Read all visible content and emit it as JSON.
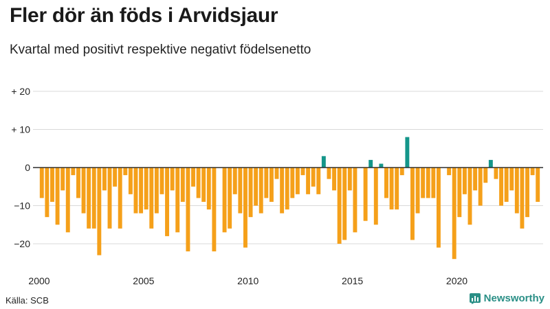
{
  "title": "Fler dör än föds i Arvidsjaur",
  "subtitle": "Kvartal med positivt respektive negativt födelsenetto",
  "source": "Källa: SCB",
  "brand": "Newsworthy",
  "colors": {
    "positive": "#14968a",
    "negative": "#f5a01a",
    "grid": "#d9d9d9",
    "zero": "#222222"
  },
  "chart_data": {
    "type": "bar",
    "title": "Fler dör än föds i Arvidsjaur",
    "subtitle": "Kvartal med positivt respektive negativt födelsenetto",
    "xlabel": "",
    "ylabel": "",
    "ylim": [
      -26,
      20
    ],
    "yticks": [
      {
        "value": 20,
        "label": "+ 20"
      },
      {
        "value": 10,
        "label": "+ 10"
      },
      {
        "value": 0,
        "label": "0"
      },
      {
        "value": -10,
        "label": "−10"
      },
      {
        "value": -20,
        "label": "−20"
      }
    ],
    "xticks": [
      {
        "index": 0,
        "label": "2000"
      },
      {
        "index": 20,
        "label": "2005"
      },
      {
        "index": 40,
        "label": "2010"
      },
      {
        "index": 60,
        "label": "2015"
      },
      {
        "index": 80,
        "label": "2020"
      }
    ],
    "categories": [
      "2000K1",
      "2000K2",
      "2000K3",
      "2000K4",
      "2001K1",
      "2001K2",
      "2001K3",
      "2001K4",
      "2002K1",
      "2002K2",
      "2002K3",
      "2002K4",
      "2003K1",
      "2003K2",
      "2003K3",
      "2003K4",
      "2004K1",
      "2004K2",
      "2004K3",
      "2004K4",
      "2005K1",
      "2005K2",
      "2005K3",
      "2005K4",
      "2006K1",
      "2006K2",
      "2006K3",
      "2006K4",
      "2007K1",
      "2007K2",
      "2007K3",
      "2007K4",
      "2008K1",
      "2008K2",
      "2008K3",
      "2008K4",
      "2009K1",
      "2009K2",
      "2009K3",
      "2009K4",
      "2010K1",
      "2010K2",
      "2010K3",
      "2010K4",
      "2011K1",
      "2011K2",
      "2011K3",
      "2011K4",
      "2012K1",
      "2012K2",
      "2012K3",
      "2012K4",
      "2013K1",
      "2013K2",
      "2013K3",
      "2013K4",
      "2014K1",
      "2014K2",
      "2014K3",
      "2014K4",
      "2015K1",
      "2015K2",
      "2015K3",
      "2015K4",
      "2016K1",
      "2016K2",
      "2016K3",
      "2016K4",
      "2017K1",
      "2017K2",
      "2017K3",
      "2017K4",
      "2018K1",
      "2018K2",
      "2018K3",
      "2018K4",
      "2019K1",
      "2019K2",
      "2019K3",
      "2019K4",
      "2020K1",
      "2020K2",
      "2020K3",
      "2020K4",
      "2021K1",
      "2021K2",
      "2021K3",
      "2021K4",
      "2022K1",
      "2022K2",
      "2022K3",
      "2022K4",
      "2023K1",
      "2023K2",
      "2023K3",
      "2023K4"
    ],
    "values": [
      -8,
      -13,
      -9,
      -15,
      -6,
      -17,
      -2,
      -8,
      -12,
      -16,
      -16,
      -23,
      -6,
      -16,
      -5,
      -16,
      -2,
      -7,
      -12,
      -12,
      -11,
      -16,
      -12,
      -7,
      -18,
      -6,
      -17,
      -9,
      -22,
      -5,
      -8,
      -9,
      -11,
      -22,
      0,
      -17,
      -16,
      -7,
      -12,
      -21,
      -13,
      -10,
      -12,
      -8,
      -9,
      -3,
      -12,
      -11,
      -8,
      -7,
      -2,
      -7,
      -5,
      -7,
      3,
      -3,
      -6,
      -20,
      -19,
      -6,
      -17,
      0,
      -14,
      2,
      -15,
      1,
      -8,
      -11,
      -11,
      -2,
      8,
      -19,
      -12,
      -8,
      -8,
      -8,
      -21,
      0,
      -2,
      -24,
      -13,
      -7,
      -15,
      -6,
      -10,
      -4,
      2,
      -3,
      -10,
      -9,
      -6,
      -12,
      -16,
      -13,
      -2,
      -9
    ]
  }
}
